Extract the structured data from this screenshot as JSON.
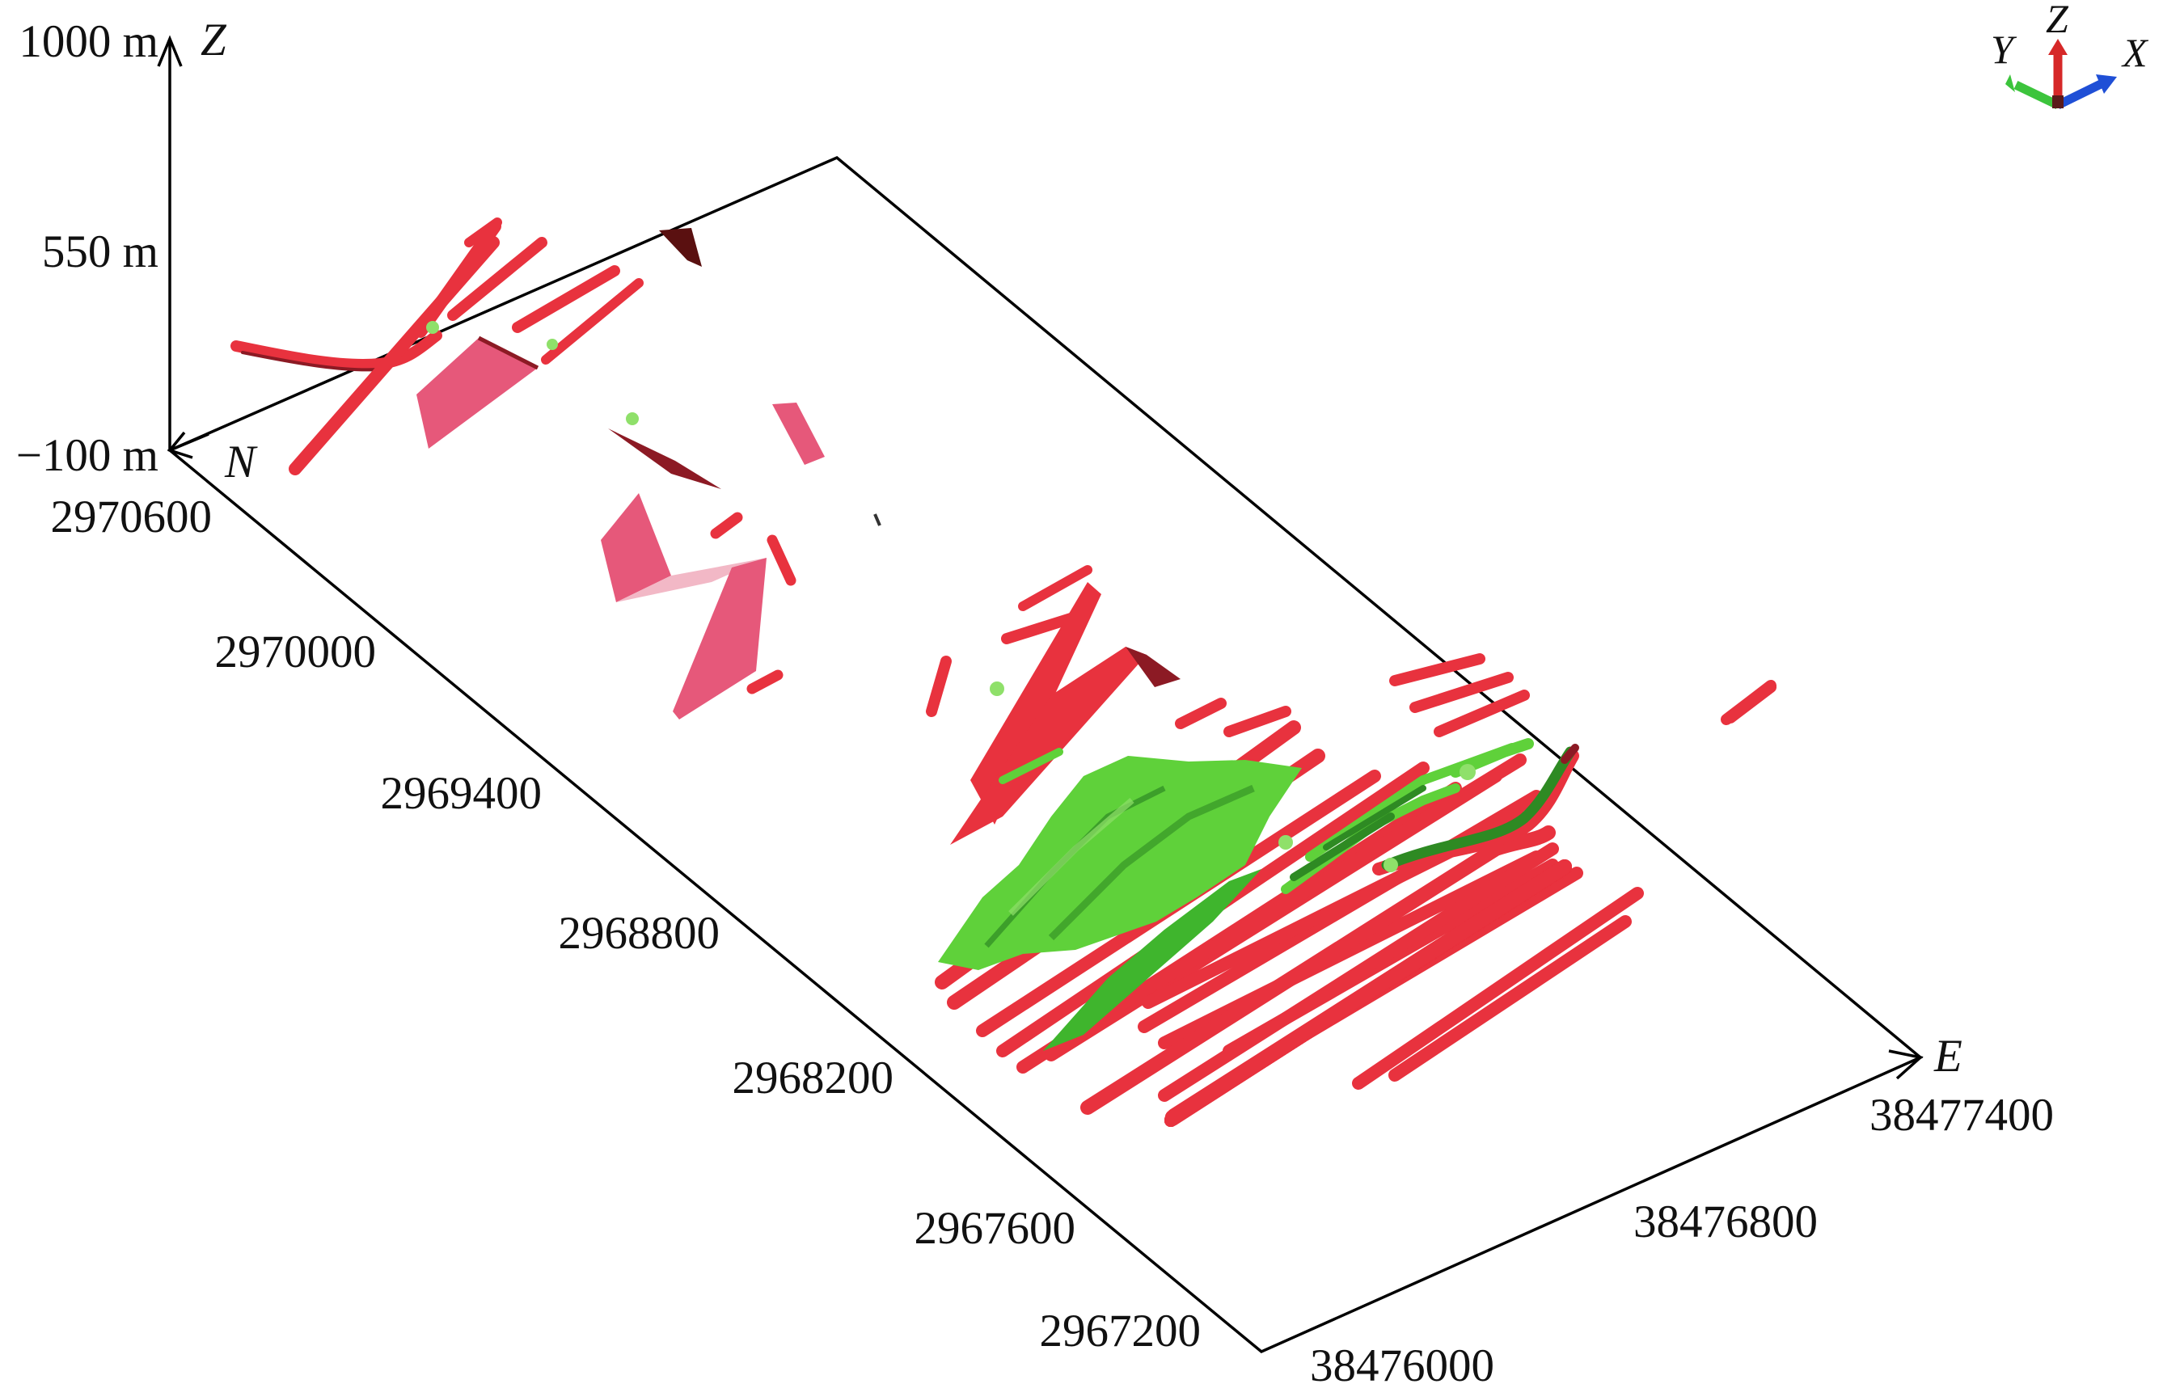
{
  "colors": {
    "orebody_red": "#e8323e",
    "orebody_dark_red": "#8c1a24",
    "orebody_pink": "#e6587a",
    "orebody_light_pink": "#f2b8c6",
    "orebody_green": "#5fd13a",
    "orebody_dark_green": "#2e8a23",
    "frame": "#000000",
    "triad_x": "#1f4fd6",
    "triad_y": "#3cc43c",
    "triad_z": "#d62828"
  },
  "z_axis": {
    "name": "Z",
    "ticks": [
      "1000 m",
      "550 m",
      "−100 m"
    ]
  },
  "north_axis": {
    "name": "N",
    "ticks": [
      "2970600",
      "2970000",
      "2969400",
      "2968800",
      "2968200",
      "2967600",
      "2967200"
    ]
  },
  "east_axis": {
    "name": "E",
    "ticks": [
      "38476000",
      "38476800",
      "38477400"
    ]
  },
  "orientation_triad": {
    "x_label": "X",
    "y_label": "Y",
    "z_label": "Z"
  },
  "icons": [
    "orientation-triad-icon"
  ]
}
